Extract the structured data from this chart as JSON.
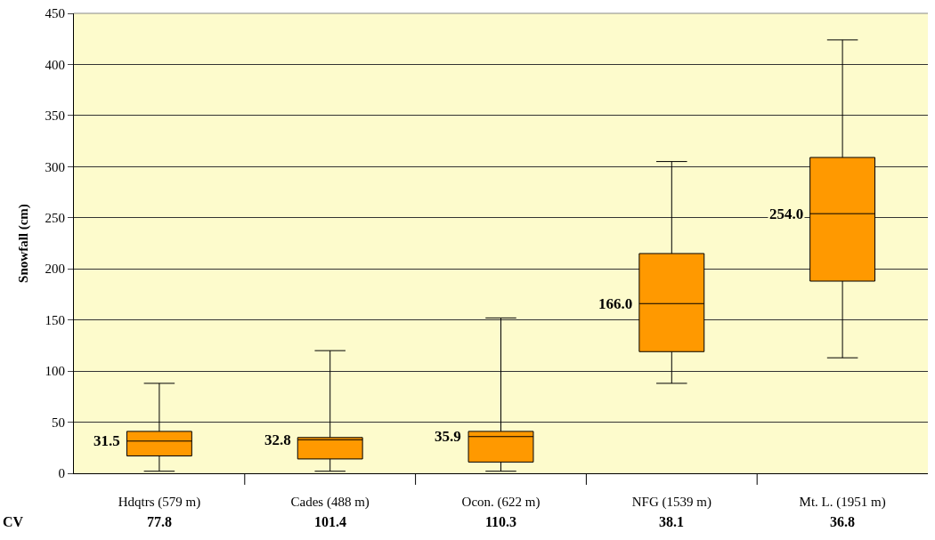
{
  "chart_data": {
    "type": "box",
    "ylabel": "Snowfall (cm)",
    "categories": [
      "Hdqtrs (579 m)",
      "Cades (488 m)",
      "Ocon. (622 m)",
      "NFG (1539 m)",
      "Mt. L. (1951 m)"
    ],
    "boxes": [
      {
        "low": 2,
        "q1": 17,
        "median": 31.5,
        "q3": 41,
        "high": 88
      },
      {
        "low": 2,
        "q1": 14,
        "median": 32.8,
        "q3": 35,
        "high": 120
      },
      {
        "low": 2,
        "q1": 11,
        "median": 35.9,
        "q3": 41,
        "high": 152
      },
      {
        "low": 88,
        "q1": 119,
        "median": 166.0,
        "q3": 215,
        "high": 305
      },
      {
        "low": 113,
        "q1": 188,
        "median": 254.0,
        "q3": 309,
        "high": 424
      }
    ],
    "value_labels": [
      "31.5",
      "32.8",
      "35.9",
      "166.0",
      "254.0"
    ],
    "color": "#ff9900",
    "ylim": [
      0,
      450
    ],
    "yticks": [
      0,
      50,
      100,
      150,
      200,
      250,
      300,
      350,
      400,
      450
    ],
    "grid": "y",
    "annotations": [
      "CV",
      "77.8",
      "101.4",
      "110.3",
      "38.1",
      "36.8"
    ]
  }
}
